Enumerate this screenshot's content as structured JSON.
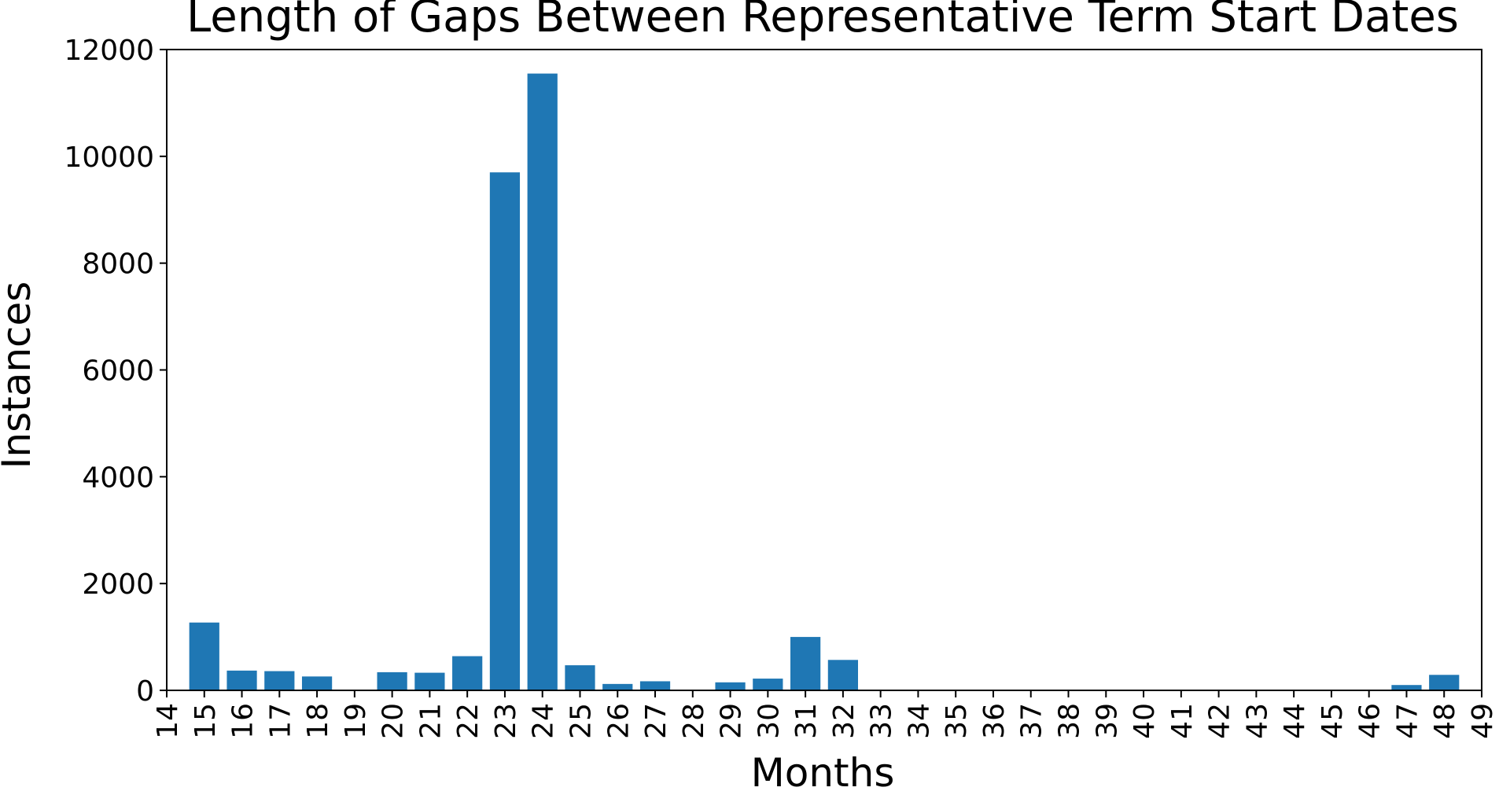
{
  "chart_data": {
    "type": "bar",
    "title": "Length of Gaps Between Representative Term Start Dates",
    "xlabel": "Months",
    "ylabel": "Instances",
    "xlim": [
      14,
      49
    ],
    "ylim": [
      0,
      12000
    ],
    "x_ticks": [
      14,
      15,
      16,
      17,
      18,
      19,
      20,
      21,
      22,
      23,
      24,
      25,
      26,
      27,
      28,
      29,
      30,
      31,
      32,
      33,
      34,
      35,
      36,
      37,
      38,
      39,
      40,
      41,
      42,
      43,
      44,
      45,
      46,
      47,
      48,
      49
    ],
    "y_ticks": [
      0,
      2000,
      4000,
      6000,
      8000,
      10000,
      12000
    ],
    "x": [
      15,
      16,
      17,
      18,
      19,
      20,
      21,
      22,
      23,
      24,
      25,
      26,
      27,
      28,
      29,
      30,
      31,
      32,
      33,
      34,
      35,
      36,
      37,
      38,
      39,
      40,
      41,
      42,
      43,
      44,
      45,
      46,
      47,
      48
    ],
    "values": [
      1270,
      370,
      360,
      260,
      0,
      340,
      330,
      640,
      9700,
      11550,
      470,
      120,
      170,
      0,
      150,
      220,
      1000,
      570,
      0,
      0,
      0,
      0,
      0,
      0,
      0,
      0,
      0,
      0,
      0,
      0,
      0,
      0,
      100,
      290
    ],
    "bar_color": "#1f77b4",
    "grid": false,
    "legend": "none"
  }
}
